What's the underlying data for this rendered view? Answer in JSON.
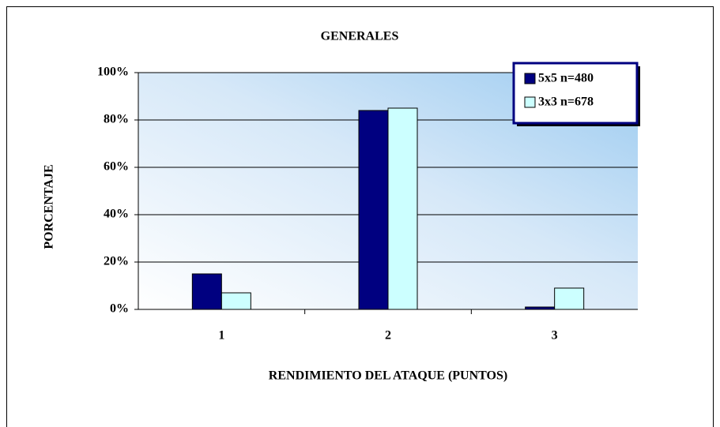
{
  "chart_data": {
    "type": "bar",
    "title": "GENERALES",
    "x_label": "RENDIMIENTO DEL ATAQUE (PUNTOS)",
    "y_label": "PORCENTAJE",
    "categories": [
      "1",
      "2",
      "3"
    ],
    "series": [
      {
        "name": "5x5 n=480",
        "color": "#000080",
        "values": [
          15,
          84,
          1
        ]
      },
      {
        "name": "3x3 n=678",
        "color": "#ccffff",
        "values": [
          7,
          85,
          9
        ]
      }
    ],
    "ylim": [
      0,
      100
    ],
    "yticks": [
      {
        "value": 0,
        "label": "0%"
      },
      {
        "value": 20,
        "label": "20%"
      },
      {
        "value": 40,
        "label": "40%"
      },
      {
        "value": 60,
        "label": "60%"
      },
      {
        "value": 80,
        "label": "80%"
      },
      {
        "value": 100,
        "label": "100%"
      }
    ],
    "grid": true,
    "legend": "top-right"
  }
}
